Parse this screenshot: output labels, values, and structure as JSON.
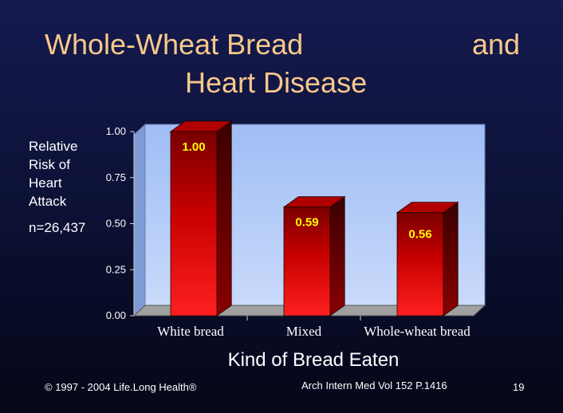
{
  "slide": {
    "title_line1": "Whole-Wheat Bread",
    "title_and": "and",
    "title_line2": "Heart Disease",
    "ylabel": "Relative Risk of Heart Attack",
    "sample": "n=26,437",
    "xlabel": "Kind of Bread Eaten",
    "copyright": "© 1997 - 2004 Life.Long Health®",
    "citation": "Arch Intern Med Vol 152 P.1416",
    "page_number": "19"
  },
  "chart_data": {
    "type": "bar",
    "categories": [
      "White bread",
      "Mixed",
      "Whole-wheat bread"
    ],
    "values": [
      1.0,
      0.59,
      0.56
    ],
    "data_labels": [
      "1.00",
      "0.59",
      "0.56"
    ],
    "yticks": [
      "0.00",
      "0.25",
      "0.50",
      "0.75",
      "1.00"
    ],
    "ylim": [
      0,
      1
    ],
    "grid": false,
    "colors": {
      "bar_top": "#8b0000",
      "bar_bottom": "#ff1a1a",
      "plot_wall": "#9ab8f2",
      "floor": "#a0a0a0",
      "label_text": "#ffff00"
    }
  }
}
